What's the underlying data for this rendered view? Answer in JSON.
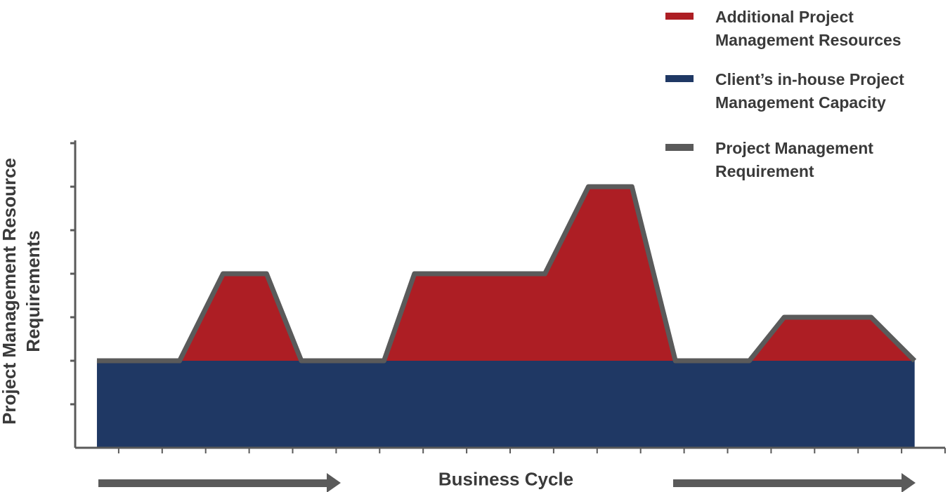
{
  "chart_data": {
    "type": "area",
    "stacked": true,
    "xlabel": "Business Cycle",
    "ylabel": "Project Management Resource Requirements",
    "x": [
      0.5,
      2.4,
      3.4,
      4.4,
      5.2,
      7.1,
      7.8,
      10.8,
      11.8,
      12.8,
      13.8,
      15.5,
      16.3,
      18.3,
      19.3
    ],
    "series": [
      {
        "name": "Additional Project Management Resources",
        "type": "area",
        "color": "#ad1e24",
        "values": [
          0,
          0,
          2,
          2,
          0,
          0,
          2,
          2,
          4,
          4,
          0,
          0,
          1,
          1,
          0
        ]
      },
      {
        "name": "Client’s in-house Project Management Capacity",
        "type": "area",
        "color": "#1f3864",
        "values": [
          2,
          2,
          2,
          2,
          2,
          2,
          2,
          2,
          2,
          2,
          2,
          2,
          2,
          2,
          2
        ]
      },
      {
        "name": "Project Management Requirement",
        "type": "line",
        "color": "#5a5a5a",
        "values": [
          2,
          2,
          4,
          4,
          2,
          2,
          4,
          4,
          6,
          6,
          2,
          2,
          3,
          3,
          2
        ]
      }
    ],
    "xlim": [
      0,
      20
    ],
    "xticks": [
      1,
      2,
      3,
      4,
      5,
      6,
      7,
      8,
      9,
      10,
      11,
      12,
      13,
      14,
      15,
      16,
      17,
      18,
      19,
      20
    ],
    "ylim": [
      0,
      7
    ],
    "yticks": [
      1,
      2,
      3,
      4,
      5,
      6,
      7
    ]
  }
}
